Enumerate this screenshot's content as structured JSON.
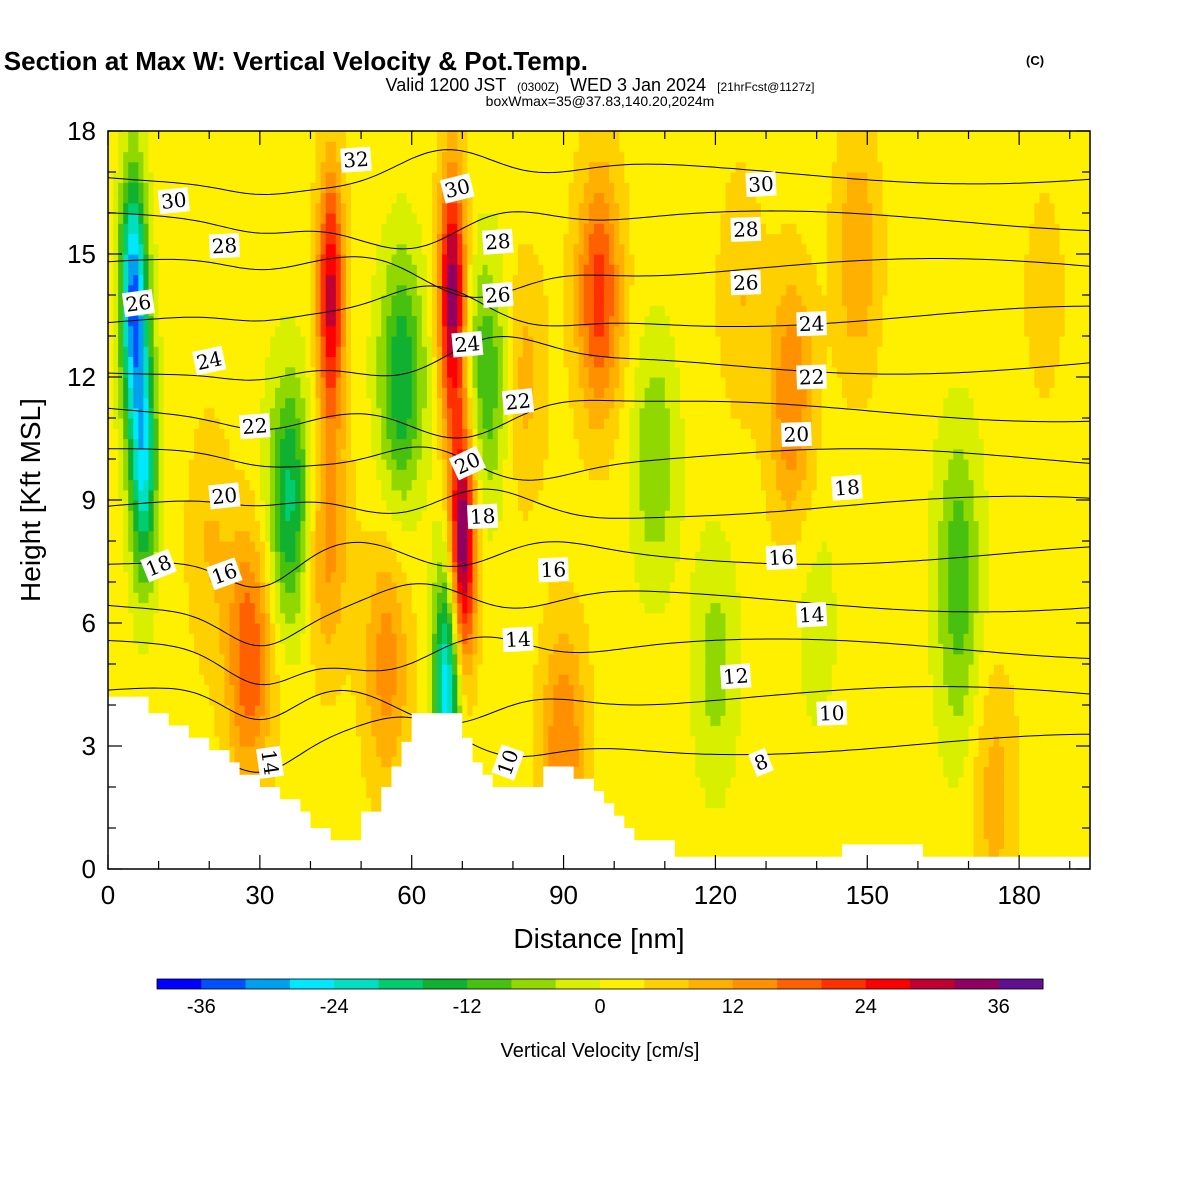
{
  "header": {
    "title_main": "Wind-Parallel Section at Max W: Vertical Velocity & Pot.Temp.",
    "title_copyright": "(C)",
    "valid_prefix": "Valid 1200 JST",
    "valid_zulu": "(0300Z)",
    "valid_date": "WED 3 Jan 2024",
    "valid_fcst": "[21hrFcst@1127z]",
    "box_info": "boxWmax=35@37.83,140.20,2024m"
  },
  "colors": {
    "colorbar": [
      "#0000ff",
      "#0050ff",
      "#00a0f0",
      "#00e8ff",
      "#00e0c0",
      "#00cc70",
      "#10b030",
      "#48c010",
      "#90d800",
      "#d8f000",
      "#fff000",
      "#ffd000",
      "#ffb000",
      "#ff9000",
      "#ff6000",
      "#ff3000",
      "#ff0000",
      "#c00030",
      "#900060",
      "#601090"
    ],
    "terrain": "#ffffff",
    "contour": "#000000"
  },
  "chart_data": {
    "type": "heatmap",
    "xlabel": "Distance [nm]",
    "ylabel": "Height [Kft MSL]",
    "xlim": [
      0,
      194
    ],
    "ylim": [
      0,
      18
    ],
    "xticks": [
      "0",
      "30",
      "60",
      "90",
      "120",
      "150",
      "180"
    ],
    "yticks": [
      "0",
      "3",
      "6",
      "9",
      "12",
      "15",
      "18"
    ],
    "xtick_values": [
      0,
      30,
      60,
      90,
      120,
      150,
      180
    ],
    "ytick_values": [
      0,
      3,
      6,
      9,
      12,
      15,
      18
    ],
    "colorbar": {
      "title": "Vertical Velocity [cm/s]",
      "labels": [
        "-36",
        "-24",
        "-12",
        "0",
        "12",
        "24",
        "36"
      ],
      "label_values": [
        -36,
        -24,
        -12,
        0,
        12,
        24,
        36
      ],
      "min": -40,
      "max": 40,
      "step": 4
    },
    "velocity_features": [
      {
        "x": 5,
        "z": 14,
        "w": -34
      },
      {
        "x": 7,
        "z": 10,
        "w": -26
      },
      {
        "x": 28,
        "z": 5.2,
        "w": 18
      },
      {
        "x": 20,
        "z": 8,
        "w": 6
      },
      {
        "x": 36,
        "z": 9,
        "w": -20
      },
      {
        "x": 44,
        "z": 14,
        "w": 28
      },
      {
        "x": 43,
        "z": 8,
        "w": 12
      },
      {
        "x": 58,
        "z": 12,
        "w": -18
      },
      {
        "x": 55,
        "z": 5,
        "w": 12
      },
      {
        "x": 68,
        "z": 14,
        "w": 34
      },
      {
        "x": 70,
        "z": 8,
        "w": 36
      },
      {
        "x": 67,
        "z": 4.5,
        "w": -30
      },
      {
        "x": 75,
        "z": 12,
        "w": -14
      },
      {
        "x": 82,
        "z": 12,
        "w": 8
      },
      {
        "x": 97,
        "z": 14,
        "w": 20
      },
      {
        "x": 90,
        "z": 3,
        "w": 14
      },
      {
        "x": 108,
        "z": 10,
        "w": -10
      },
      {
        "x": 125,
        "z": 14,
        "w": 6
      },
      {
        "x": 135,
        "z": 11.5,
        "w": 14
      },
      {
        "x": 148,
        "z": 15,
        "w": 10
      },
      {
        "x": 120,
        "z": 5,
        "w": -8
      },
      {
        "x": 140,
        "z": 6,
        "w": -4
      },
      {
        "x": 168,
        "z": 8,
        "w": -10
      },
      {
        "x": 168,
        "z": 5,
        "w": -6
      },
      {
        "x": 175,
        "z": 1.8,
        "w": 8
      },
      {
        "x": 185,
        "z": 14,
        "w": 4
      },
      {
        "x": 192,
        "z": 17,
        "w": 0
      }
    ],
    "terrain_profile": [
      [
        0,
        4.2
      ],
      [
        8,
        4.2
      ],
      [
        8,
        3.8
      ],
      [
        12,
        3.8
      ],
      [
        12,
        3.5
      ],
      [
        16,
        3.5
      ],
      [
        16,
        3.2
      ],
      [
        20,
        3.2
      ],
      [
        20,
        2.9
      ],
      [
        24,
        2.9
      ],
      [
        24,
        2.6
      ],
      [
        26,
        2.6
      ],
      [
        26,
        2.3
      ],
      [
        30,
        2.3
      ],
      [
        30,
        2.0
      ],
      [
        34,
        2.0
      ],
      [
        34,
        1.7
      ],
      [
        38,
        1.7
      ],
      [
        38,
        1.4
      ],
      [
        40,
        1.4
      ],
      [
        40,
        1.0
      ],
      [
        44,
        1.0
      ],
      [
        44,
        0.7
      ],
      [
        50,
        0.7
      ],
      [
        50,
        1.4
      ],
      [
        54,
        1.4
      ],
      [
        54,
        2.0
      ],
      [
        56,
        2.0
      ],
      [
        56,
        2.5
      ],
      [
        58,
        2.5
      ],
      [
        58,
        3.1
      ],
      [
        60,
        3.1
      ],
      [
        60,
        3.8
      ],
      [
        70,
        3.8
      ],
      [
        70,
        3.2
      ],
      [
        72,
        3.2
      ],
      [
        72,
        2.6
      ],
      [
        74,
        2.6
      ],
      [
        74,
        2.3
      ],
      [
        76,
        2.3
      ],
      [
        76,
        2.0
      ],
      [
        86,
        2.0
      ],
      [
        86,
        2.5
      ],
      [
        92,
        2.5
      ],
      [
        92,
        2.2
      ],
      [
        96,
        2.2
      ],
      [
        96,
        1.9
      ],
      [
        98,
        1.9
      ],
      [
        98,
        1.6
      ],
      [
        100,
        1.6
      ],
      [
        100,
        1.3
      ],
      [
        102,
        1.3
      ],
      [
        102,
        1.0
      ],
      [
        104,
        1.0
      ],
      [
        104,
        0.7
      ],
      [
        112,
        0.7
      ],
      [
        112,
        0.3
      ],
      [
        145,
        0.3
      ],
      [
        145,
        0.6
      ],
      [
        161,
        0.6
      ],
      [
        161,
        0.3
      ],
      [
        194,
        0.3
      ]
    ],
    "theta_contour_levels": [
      8,
      10,
      12,
      14,
      16,
      18,
      20,
      22,
      24,
      26,
      28,
      30,
      32
    ],
    "contour_labels": [
      {
        "text": "32",
        "x": 49,
        "z": 17.3,
        "angle": -4
      },
      {
        "text": "30",
        "x": 13,
        "z": 16.3,
        "angle": -6
      },
      {
        "text": "30",
        "x": 69,
        "z": 16.6,
        "angle": -14
      },
      {
        "text": "30",
        "x": 129,
        "z": 16.7,
        "angle": -3
      },
      {
        "text": "28",
        "x": 23,
        "z": 15.2,
        "angle": -3
      },
      {
        "text": "28",
        "x": 77,
        "z": 15.3,
        "angle": -4
      },
      {
        "text": "28",
        "x": 126,
        "z": 15.6,
        "angle": -2
      },
      {
        "text": "26",
        "x": 6,
        "z": 13.8,
        "angle": -8
      },
      {
        "text": "26",
        "x": 77,
        "z": 14.0,
        "angle": -4
      },
      {
        "text": "26",
        "x": 126,
        "z": 14.3,
        "angle": -2
      },
      {
        "text": "24",
        "x": 20,
        "z": 12.4,
        "angle": -12
      },
      {
        "text": "24",
        "x": 71,
        "z": 12.8,
        "angle": -5
      },
      {
        "text": "24",
        "x": 139,
        "z": 13.3,
        "angle": -2
      },
      {
        "text": "22",
        "x": 29,
        "z": 10.8,
        "angle": -4
      },
      {
        "text": "22",
        "x": 81,
        "z": 11.4,
        "angle": -6
      },
      {
        "text": "22",
        "x": 139,
        "z": 12.0,
        "angle": -2
      },
      {
        "text": "20",
        "x": 23,
        "z": 9.1,
        "angle": -6
      },
      {
        "text": "20",
        "x": 71,
        "z": 9.9,
        "angle": -25
      },
      {
        "text": "20",
        "x": 136,
        "z": 10.6,
        "angle": -2
      },
      {
        "text": "18",
        "x": 10,
        "z": 7.4,
        "angle": -22
      },
      {
        "text": "18",
        "x": 74,
        "z": 8.6,
        "angle": -3
      },
      {
        "text": "18",
        "x": 146,
        "z": 9.3,
        "angle": -4
      },
      {
        "text": "16",
        "x": 23,
        "z": 7.2,
        "angle": -20
      },
      {
        "text": "16",
        "x": 88,
        "z": 7.3,
        "angle": -2
      },
      {
        "text": "16",
        "x": 133,
        "z": 7.6,
        "angle": -3
      },
      {
        "text": "14",
        "x": 32,
        "z": 2.6,
        "angle": 82
      },
      {
        "text": "14",
        "x": 81,
        "z": 5.6,
        "angle": -3
      },
      {
        "text": "14",
        "x": 139,
        "z": 6.2,
        "angle": -3
      },
      {
        "text": "12",
        "x": 124,
        "z": 4.7,
        "angle": -4
      },
      {
        "text": "10",
        "x": 79,
        "z": 2.6,
        "angle": -70
      },
      {
        "text": "10",
        "x": 143,
        "z": 3.8,
        "angle": -2
      },
      {
        "text": "8",
        "x": 129,
        "z": 2.6,
        "angle": -22
      }
    ]
  }
}
